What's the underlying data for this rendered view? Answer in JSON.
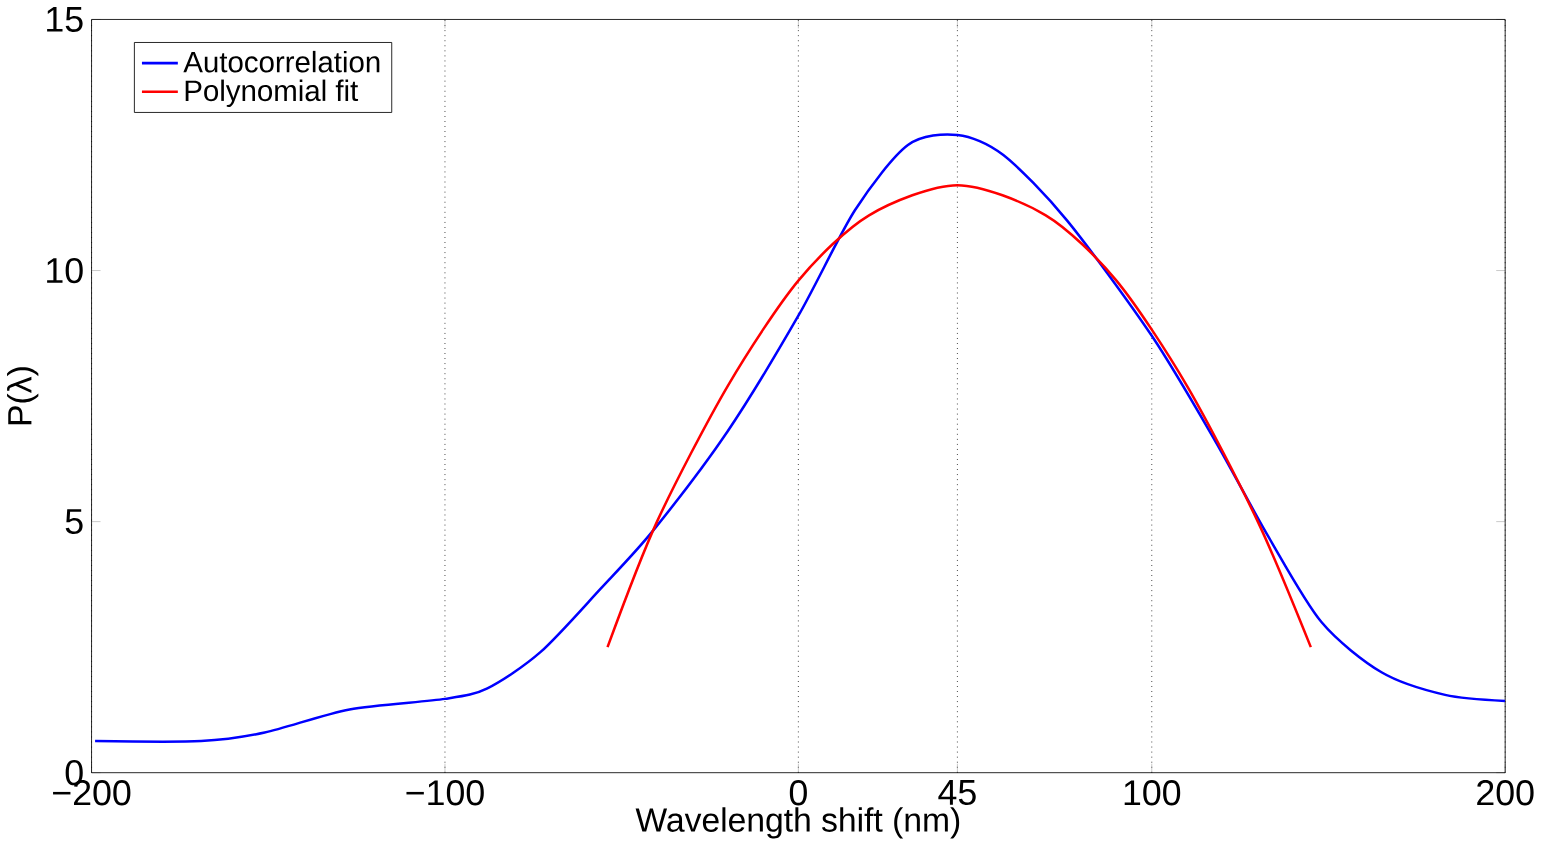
{
  "chart_data": {
    "type": "line",
    "xlabel": "Wavelength shift (nm)",
    "ylabel": "P(λ)",
    "xlim": [
      -200,
      200
    ],
    "ylim": [
      0,
      15
    ],
    "xticks": [
      {
        "value": -200,
        "label": "−200"
      },
      {
        "value": -100,
        "label": "−100"
      },
      0,
      45,
      100,
      200
    ],
    "yticks": [
      0,
      5,
      10,
      15
    ],
    "grid": "x",
    "legend": "top left",
    "line_style": "solid",
    "marker": "none",
    "series": [
      {
        "name": "Autocorrelation",
        "color": "#0000ff",
        "x": [
          -199,
          -169,
          -151,
          -127,
          -100,
          -88,
          -73,
          -56,
          -41,
          -20,
          0,
          16,
          31,
          45,
          58,
          76,
          100,
          118,
          133,
          148,
          165,
          183,
          200
        ],
        "values": [
          0.63,
          0.63,
          0.8,
          1.26,
          1.47,
          1.68,
          2.4,
          3.66,
          4.83,
          6.8,
          9.1,
          11.2,
          12.5,
          12.7,
          12.3,
          11.0,
          8.7,
          6.6,
          4.7,
          3.0,
          2.0,
          1.55,
          1.43
        ]
      },
      {
        "name": "Polynomial fit",
        "color": "#ff0000",
        "x": [
          -54,
          -40,
          -20,
          0,
          20,
          45,
          70,
          90,
          110,
          130,
          145
        ],
        "values": [
          2.5,
          5.0,
          7.7,
          9.8,
          11.1,
          11.7,
          11.1,
          9.8,
          7.7,
          5.0,
          2.5
        ]
      }
    ]
  }
}
